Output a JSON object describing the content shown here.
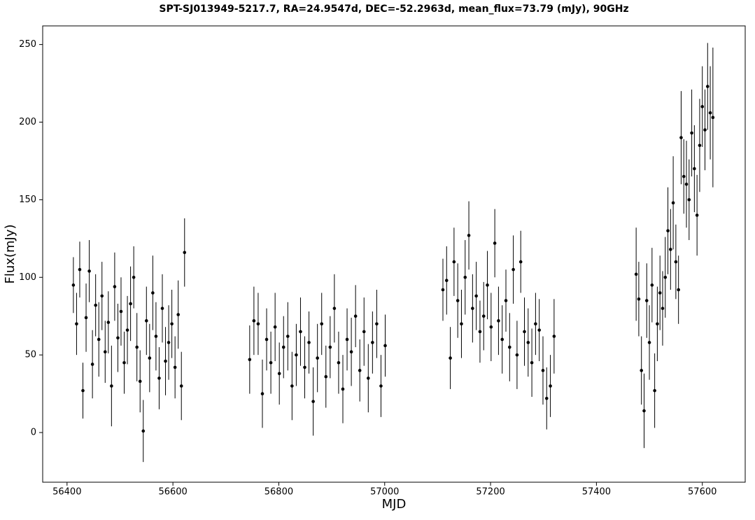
{
  "chart_data": {
    "type": "scatter",
    "title": "SPT-SJ013949-5217.7, RA=24.9547d, DEC=-52.2963d, mean_flux=73.79 (mJy), 90GHz",
    "xlabel": "MJD",
    "ylabel": "Flux(mJy)",
    "color": "#000000",
    "xlim": [
      56354,
      57681
    ],
    "ylim": [
      -32,
      262
    ],
    "xticks": [
      56400,
      56600,
      56800,
      57000,
      57200,
      57400,
      57600
    ],
    "yticks": [
      0,
      50,
      100,
      150,
      200,
      250
    ],
    "x": [
      56412,
      56418,
      56424,
      56430,
      56436,
      56442,
      56448,
      56454,
      56460,
      56466,
      56472,
      56478,
      56484,
      56490,
      56496,
      56502,
      56508,
      56514,
      56520,
      56526,
      56532,
      56538,
      56544,
      56550,
      56556,
      56562,
      56568,
      56574,
      56580,
      56586,
      56592,
      56598,
      56604,
      56610,
      56616,
      56622,
      56745,
      56753,
      56761,
      56769,
      56777,
      56785,
      56793,
      56801,
      56809,
      56817,
      56825,
      56833,
      56841,
      56849,
      56857,
      56865,
      56873,
      56881,
      56889,
      56897,
      56905,
      56913,
      56921,
      56929,
      56937,
      56945,
      56953,
      56961,
      56969,
      56977,
      56985,
      56993,
      57001,
      57110,
      57117,
      57124,
      57131,
      57138,
      57145,
      57152,
      57159,
      57166,
      57173,
      57180,
      57187,
      57194,
      57201,
      57208,
      57215,
      57222,
      57229,
      57236,
      57243,
      57250,
      57257,
      57264,
      57271,
      57278,
      57285,
      57292,
      57299,
      57306,
      57313,
      57320,
      57475,
      57480,
      57485,
      57490,
      57495,
      57500,
      57505,
      57510,
      57515,
      57520,
      57525,
      57530,
      57535,
      57540,
      57545,
      57550,
      57555,
      57560,
      57565,
      57570,
      57575,
      57580,
      57585,
      57590,
      57595,
      57600,
      57605,
      57610,
      57615,
      57620
    ],
    "y": [
      95,
      70,
      105,
      27,
      74,
      104,
      44,
      82,
      60,
      88,
      52,
      71,
      30,
      94,
      61,
      78,
      45,
      66,
      83,
      100,
      55,
      33,
      1,
      72,
      48,
      90,
      62,
      35,
      80,
      46,
      58,
      70,
      42,
      76,
      30,
      116,
      47,
      72,
      70,
      25,
      60,
      45,
      68,
      38,
      55,
      62,
      30,
      50,
      65,
      42,
      58,
      20,
      48,
      70,
      36,
      55,
      80,
      45,
      28,
      60,
      52,
      75,
      40,
      65,
      35,
      58,
      70,
      30,
      56,
      92,
      98,
      48,
      110,
      85,
      70,
      100,
      127,
      80,
      88,
      65,
      75,
      95,
      68,
      122,
      72,
      60,
      85,
      55,
      105,
      50,
      110,
      65,
      58,
      45,
      70,
      66,
      40,
      22,
      30,
      62,
      102,
      86,
      40,
      14,
      85,
      58,
      95,
      27,
      70,
      90,
      80,
      100,
      130,
      118,
      148,
      110,
      92,
      190,
      165,
      160,
      150,
      193,
      170,
      140,
      185,
      210,
      195,
      223,
      206,
      203
    ],
    "errors": [
      18,
      20,
      18,
      18,
      22,
      20,
      22,
      20,
      24,
      22,
      20,
      20,
      26,
      22,
      22,
      22,
      20,
      22,
      24,
      20,
      22,
      20,
      20,
      22,
      22,
      24,
      22,
      20,
      22,
      22,
      24,
      22,
      20,
      22,
      22,
      22,
      22,
      22,
      20,
      22,
      20,
      20,
      22,
      20,
      20,
      22,
      22,
      20,
      22,
      20,
      20,
      22,
      22,
      20,
      20,
      20,
      22,
      20,
      22,
      20,
      22,
      20,
      20,
      22,
      22,
      20,
      22,
      20,
      20,
      20,
      22,
      20,
      22,
      24,
      22,
      24,
      22,
      22,
      22,
      20,
      22,
      22,
      22,
      22,
      22,
      22,
      20,
      22,
      22,
      22,
      20,
      22,
      22,
      22,
      20,
      20,
      22,
      20,
      20,
      24,
      30,
      24,
      22,
      24,
      24,
      24,
      24,
      24,
      24,
      24,
      24,
      26,
      28,
      26,
      30,
      24,
      22,
      30,
      24,
      28,
      26,
      28,
      28,
      26,
      30,
      26,
      26,
      28,
      30,
      45
    ]
  }
}
